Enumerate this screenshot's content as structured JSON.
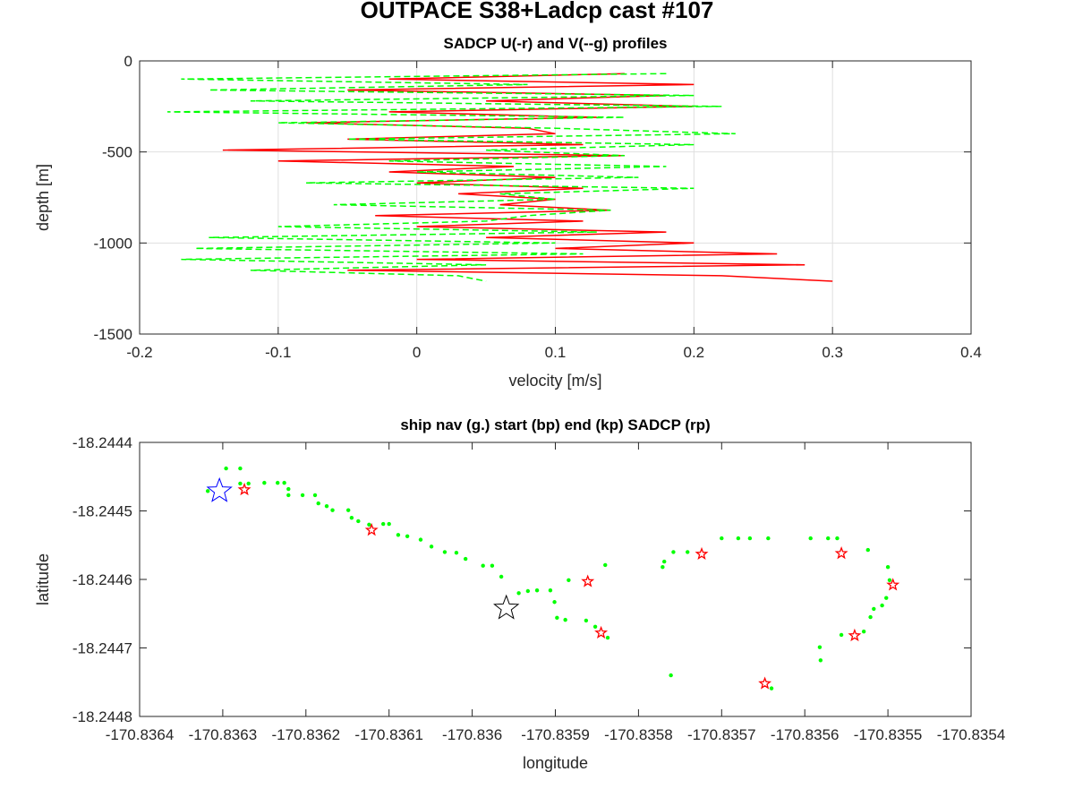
{
  "title": "OUTPACE S38+Ladcp cast #107",
  "chart_data": [
    {
      "type": "profile",
      "title": "SADCP U(-r) and V(--g) profiles",
      "x_label": "velocity [m/s]",
      "y_label": "depth [m]",
      "xlim": [
        -0.2,
        0.4
      ],
      "xticks": [
        -0.2,
        -0.1,
        0,
        0.1,
        0.2,
        0.3,
        0.4
      ],
      "ylim": [
        -1500,
        0
      ],
      "yticks": [
        -1500,
        -1000,
        -500,
        0
      ],
      "grid": true,
      "y": [
        -70,
        -100,
        -130,
        -160,
        -190,
        -220,
        -250,
        -280,
        -310,
        -340,
        -370,
        -400,
        -430,
        -460,
        -490,
        -520,
        -550,
        -580,
        -610,
        -640,
        -670,
        -700,
        -730,
        -760,
        -790,
        -820,
        -850,
        -880,
        -910,
        -940,
        -970,
        -1000,
        -1030,
        -1060,
        -1090,
        -1120,
        -1150,
        -1180,
        -1210
      ],
      "series": [
        {
          "color": "#ff0000",
          "dashed": false,
          "values": [
            0.15,
            -0.02,
            0.2,
            -0.05,
            0.18,
            0.05,
            0.2,
            -0.02,
            0.13,
            -0.08,
            0.08,
            0.1,
            -0.05,
            0.12,
            -0.14,
            0.15,
            -0.1,
            0.07,
            -0.02,
            0.1,
            0.0,
            0.12,
            0.03,
            0.1,
            0.06,
            0.14,
            -0.03,
            0.12,
            0.0,
            0.18,
            0.05,
            0.2,
            0.1,
            0.26,
            0.0,
            0.28,
            -0.05,
            0.22,
            0.3
          ]
        },
        {
          "color": "#00ff00",
          "dashed": true,
          "values": [
            0.18,
            -0.17,
            0.08,
            -0.15,
            0.2,
            -0.12,
            0.22,
            -0.18,
            0.15,
            -0.1,
            0.1,
            0.23,
            -0.05,
            0.2,
            0.05,
            0.15,
            -0.02,
            0.18,
            0.0,
            0.16,
            -0.08,
            0.2,
            0.06,
            0.1,
            -0.06,
            0.14,
            0.08,
            0.05,
            -0.1,
            0.13,
            -0.15,
            0.1,
            -0.16,
            0.12,
            -0.17,
            0.05,
            -0.12,
            0.03,
            0.05
          ]
        }
      ]
    },
    {
      "type": "scatter",
      "title": "ship nav (g.) start (bp) end (kp) SADCP (rp)",
      "x_label": "longitude",
      "y_label": "latitude",
      "xlim": [
        -170.8364,
        -170.8354
      ],
      "xticks": [
        -170.8364,
        -170.8363,
        -170.8362,
        -170.8361,
        -170.836,
        -170.8359,
        -170.8358,
        -170.8357,
        -170.8356,
        -170.8355,
        -170.8354
      ],
      "ylim": [
        -18.2448,
        -18.2444
      ],
      "yticks": [
        -18.2448,
        -18.2447,
        -18.2446,
        -18.2445,
        -18.2444
      ],
      "grid": false,
      "series": [
        {
          "color": "#00ff00",
          "marker": "dot",
          "x": [
            -170.836318,
            -170.836296,
            -170.836279,
            -170.836279,
            -170.836269,
            -170.83625,
            -170.836234,
            -170.836226,
            -170.836221,
            -170.836221,
            -170.836204,
            -170.836189,
            -170.836185,
            -170.836175,
            -170.836168,
            -170.836149,
            -170.836145,
            -170.836137,
            -170.836124,
            -170.836107,
            -170.8361,
            -170.836089,
            -170.836078,
            -170.836062,
            -170.836049,
            -170.836033,
            -170.836019,
            -170.836008,
            -170.835987,
            -170.835976,
            -170.835965,
            -170.835944,
            -170.835933,
            -170.835922,
            -170.835906,
            -170.835901,
            -170.835898,
            -170.835888,
            -170.835863,
            -170.835884,
            -170.83584,
            -170.835852,
            -170.835837,
            -170.835771,
            -170.835769,
            -170.835758,
            -170.835741,
            -170.8357,
            -170.83568,
            -170.835666,
            -170.835644,
            -170.835593,
            -170.835572,
            -170.835561,
            -170.835524,
            -170.8355,
            -170.835498,
            -170.835502,
            -170.835507,
            -170.835517,
            -170.835521,
            -170.835529,
            -170.835556,
            -170.835582,
            -170.835581,
            -170.835761,
            -170.83564
          ],
          "values": [
            -18.244471,
            -18.244438,
            -18.244438,
            -18.24446,
            -18.24446,
            -18.244459,
            -18.244459,
            -18.244459,
            -18.244468,
            -18.244477,
            -18.244477,
            -18.244477,
            -18.244489,
            -18.244493,
            -18.244499,
            -18.244499,
            -18.24451,
            -18.244515,
            -18.24452,
            -18.244519,
            -18.244519,
            -18.244535,
            -18.244537,
            -18.244542,
            -18.244552,
            -18.24456,
            -18.244561,
            -18.24457,
            -18.24458,
            -18.24458,
            -18.244596,
            -18.24462,
            -18.244617,
            -18.244616,
            -18.244616,
            -18.244633,
            -18.244656,
            -18.244659,
            -18.24466,
            -18.244601,
            -18.244579,
            -18.244669,
            -18.244685,
            -18.244582,
            -18.244574,
            -18.24456,
            -18.24456,
            -18.24454,
            -18.24454,
            -18.24454,
            -18.24454,
            -18.24454,
            -18.24454,
            -18.24454,
            -18.244557,
            -18.244582,
            -18.244601,
            -18.244627,
            -18.244638,
            -18.244643,
            -18.244655,
            -18.244676,
            -18.244681,
            -18.244699,
            -18.244718,
            -18.24474,
            -18.244759
          ]
        },
        {
          "color": "#ff0000",
          "marker": "star-small",
          "x": [
            -170.836274,
            -170.836121,
            -170.835861,
            -170.835845,
            -170.835724,
            -170.835648,
            -170.835556,
            -170.83554,
            -170.835494
          ],
          "values": [
            -18.244469,
            -18.244528,
            -18.244603,
            -18.244678,
            -18.244563,
            -18.244752,
            -18.244562,
            -18.244682,
            -18.244608
          ]
        },
        {
          "color": "#0000ff",
          "marker": "star-big",
          "x": [
            -170.836304
          ],
          "values": [
            -18.244471
          ]
        },
        {
          "color": "#000000",
          "marker": "star-big",
          "x": [
            -170.835959
          ],
          "values": [
            -18.244642
          ]
        }
      ]
    }
  ]
}
